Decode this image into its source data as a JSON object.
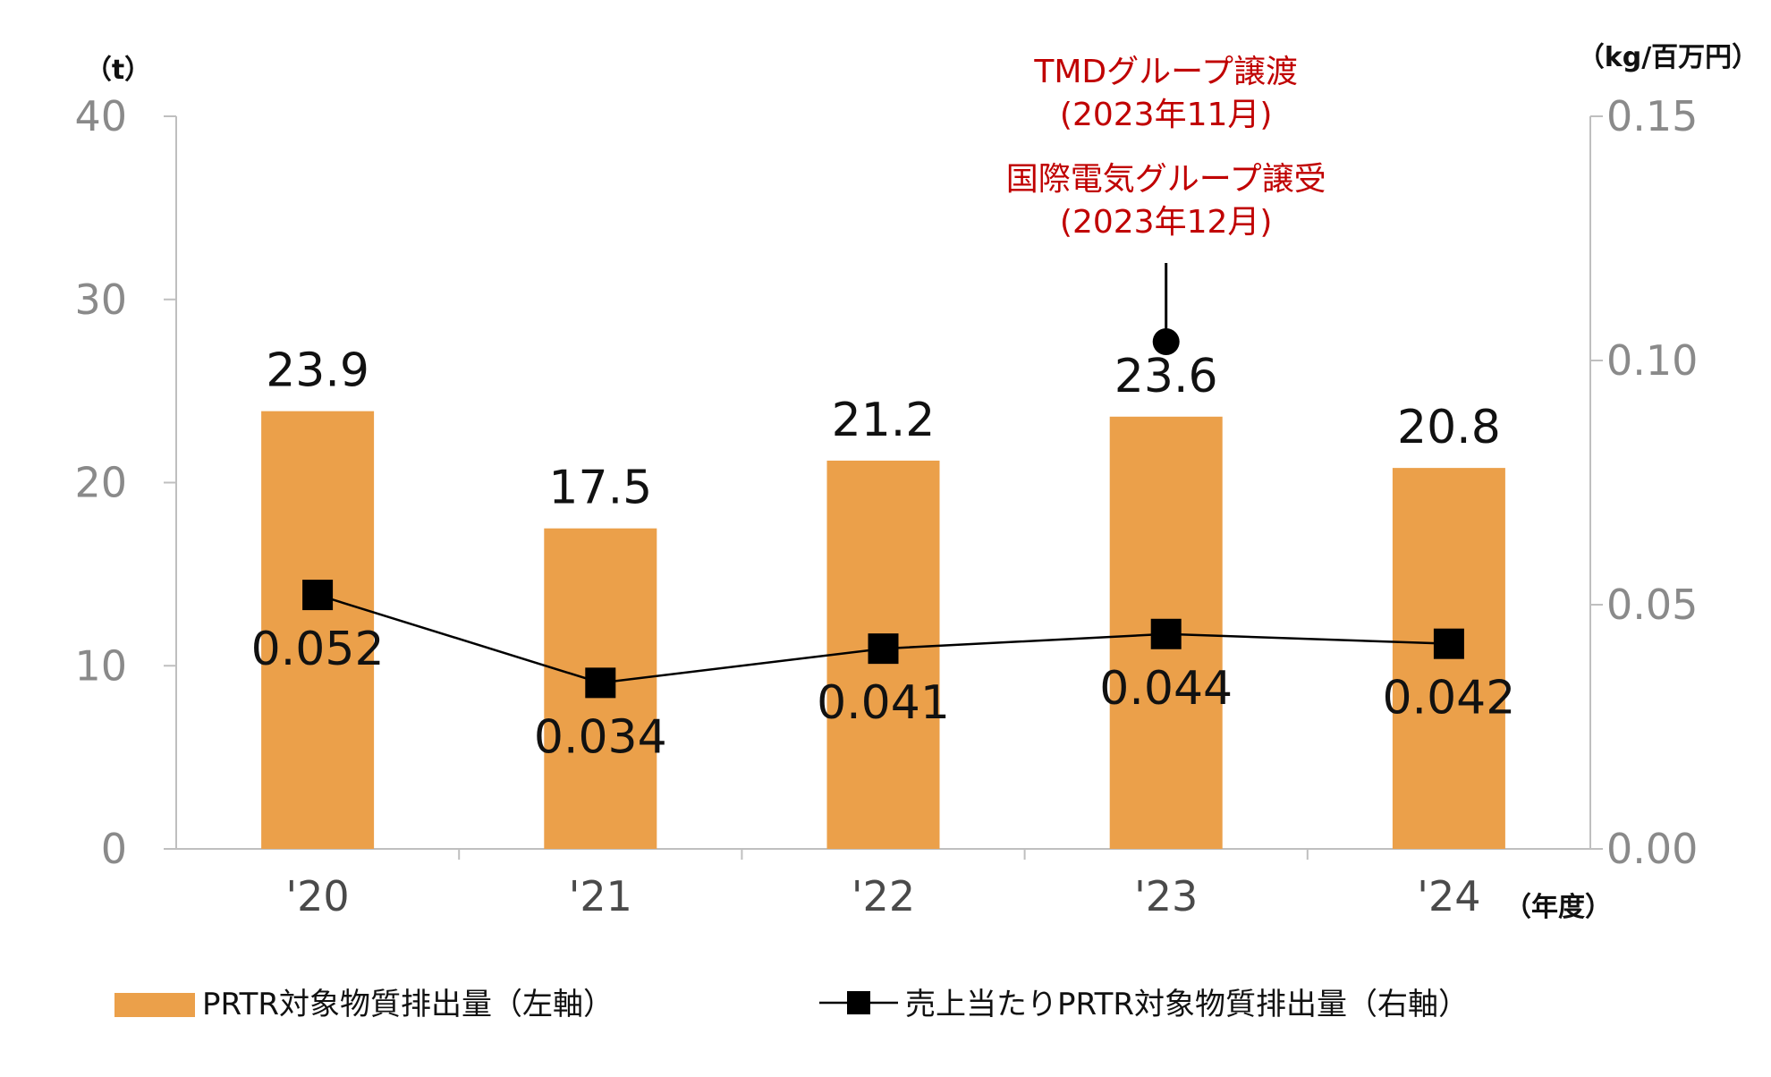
{
  "chart_data": {
    "type": "bar",
    "categories": [
      "'20",
      "'21",
      "'22",
      "'23",
      "'24"
    ],
    "series": [
      {
        "name": "PRTR対象物質排出量（左軸）",
        "type": "bar",
        "axis": "left",
        "values": [
          23.9,
          17.5,
          21.2,
          23.6,
          20.8
        ],
        "labels": [
          "23.9",
          "17.5",
          "21.2",
          "23.6",
          "20.8"
        ],
        "color": "#EBA04A"
      },
      {
        "name": "売上当たりPRTR対象物質排出量（右軸）",
        "type": "line",
        "axis": "right",
        "values": [
          0.052,
          0.034,
          0.041,
          0.044,
          0.042
        ],
        "labels": [
          "0.052",
          "0.034",
          "0.041",
          "0.044",
          "0.042"
        ],
        "color": "#000000"
      }
    ],
    "y_left": {
      "unit": "（t）",
      "ylim": [
        0,
        40
      ],
      "ticks": [
        0,
        10,
        20,
        30,
        40
      ],
      "tick_labels": [
        "0",
        "10",
        "20",
        "30",
        "40"
      ]
    },
    "y_right": {
      "unit": "（kg/百万円）",
      "ylim": [
        0,
        0.15
      ],
      "ticks": [
        0,
        0.05,
        0.1,
        0.15
      ],
      "tick_labels": [
        "0.00",
        "0.05",
        "0.10",
        "0.15"
      ]
    },
    "x_unit": "（年度）",
    "grid": false,
    "legend_position": "bottom",
    "annotation": {
      "category_index": 3,
      "lines": [
        "TMDグループ譲渡",
        "(2023年11月)",
        "国際電気グループ譲受",
        "(2023年12月)"
      ],
      "color": "#C00000"
    }
  }
}
